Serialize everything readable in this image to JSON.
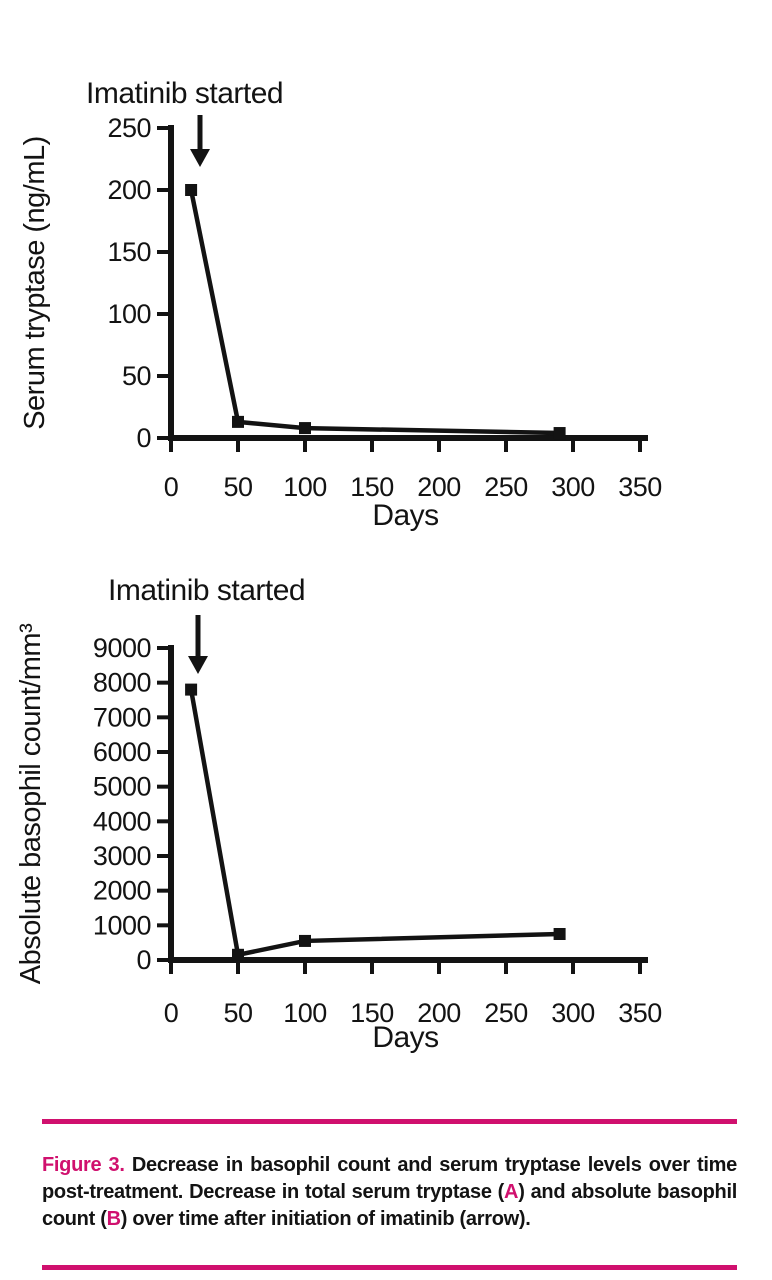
{
  "colors": {
    "accent": "#d0106e",
    "ink": "#131313",
    "bg": "#ffffff"
  },
  "chart_data": [
    {
      "panel": "A",
      "type": "line",
      "annotation": "Imatinib started",
      "xlabel": "Days",
      "ylabel": "Serum tryptase (ng/mL)",
      "x": [
        15,
        50,
        100,
        290
      ],
      "y": [
        200,
        13,
        8,
        4
      ],
      "xticks": [
        0,
        50,
        100,
        150,
        200,
        250,
        300,
        350
      ],
      "yticks": [
        0,
        50,
        100,
        150,
        200,
        250
      ],
      "xlim": [
        0,
        350
      ],
      "ylim": [
        0,
        250
      ],
      "arrow_day": 22,
      "legend": "none",
      "grid": false
    },
    {
      "panel": "B",
      "type": "line",
      "annotation": "Imatinib started",
      "xlabel": "Days",
      "ylabel": "Absolute basophil count/mm³",
      "x": [
        15,
        50,
        100,
        290
      ],
      "y": [
        7800,
        150,
        550,
        750
      ],
      "xticks": [
        0,
        50,
        100,
        150,
        200,
        250,
        300,
        350
      ],
      "yticks": [
        0,
        1000,
        2000,
        3000,
        4000,
        5000,
        6000,
        7000,
        8000,
        9000
      ],
      "xlim": [
        0,
        350
      ],
      "ylim": [
        0,
        9000
      ],
      "arrow_day": 20,
      "legend": "none",
      "grid": false
    }
  ],
  "caption": {
    "label": "Figure 3.",
    "part1": " Decrease in basophil count and serum tryptase levels over time post-treatment. Decrease in total serum tryptase (",
    "ref_a": "A",
    "part2": ") and absolute basophil count (",
    "ref_b": "B",
    "part3": ") over time after initiation of imatinib (arrow)."
  }
}
